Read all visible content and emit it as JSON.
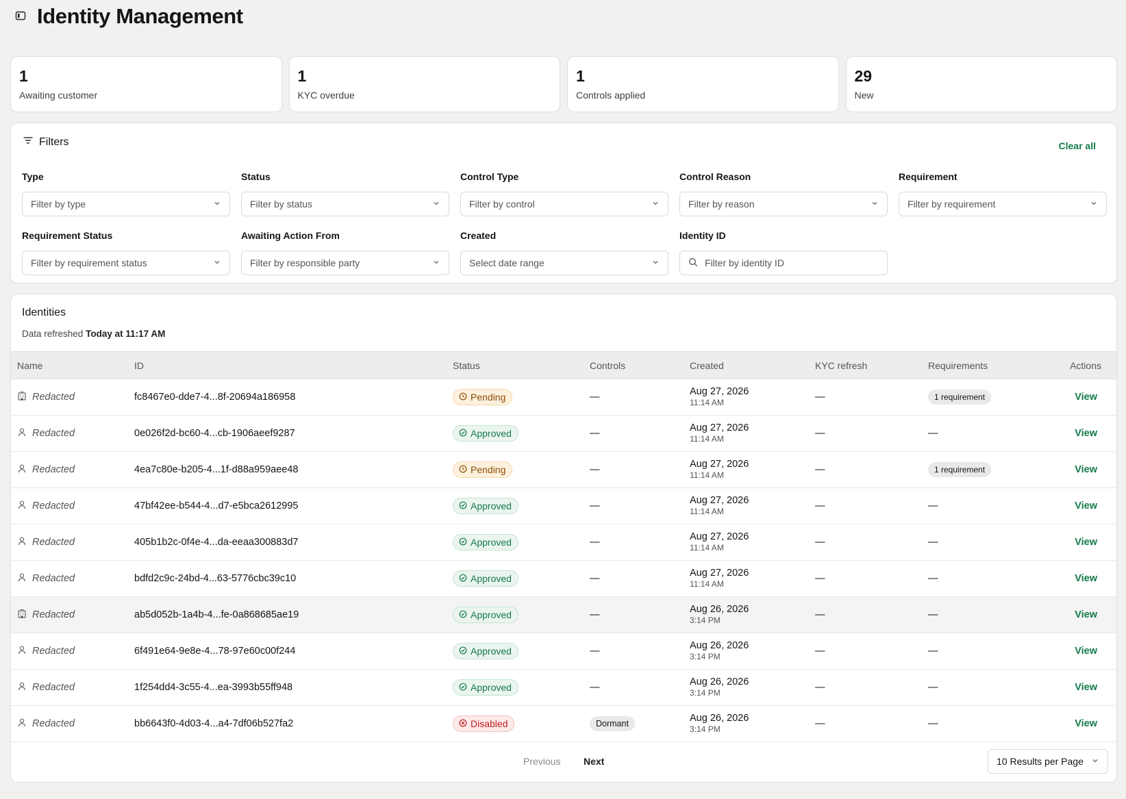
{
  "page": {
    "title": "Identity Management"
  },
  "stats": [
    {
      "value": "1",
      "label": "Awaiting customer"
    },
    {
      "value": "1",
      "label": "KYC overdue"
    },
    {
      "value": "1",
      "label": "Controls applied"
    },
    {
      "value": "29",
      "label": "New"
    }
  ],
  "filters": {
    "title": "Filters",
    "clear_all": "Clear all",
    "row1": [
      {
        "label": "Type",
        "placeholder": "Filter by type"
      },
      {
        "label": "Status",
        "placeholder": "Filter by status"
      },
      {
        "label": "Control Type",
        "placeholder": "Filter by control"
      },
      {
        "label": "Control Reason",
        "placeholder": "Filter by reason"
      },
      {
        "label": "Requirement",
        "placeholder": "Filter by requirement"
      }
    ],
    "row2": [
      {
        "label": "Requirement Status",
        "placeholder": "Filter by requirement status"
      },
      {
        "label": "Awaiting Action From",
        "placeholder": "Filter by responsible party"
      },
      {
        "label": "Created",
        "placeholder": "Select date range"
      },
      {
        "label": "Identity ID",
        "placeholder": "Filter by identity ID"
      }
    ]
  },
  "table": {
    "title": "Identities",
    "refresh_prefix": "Data refreshed",
    "refresh_time": "Today at 11:17 AM",
    "columns": [
      "Name",
      "ID",
      "Status",
      "Controls",
      "Created",
      "KYC refresh",
      "Requirements",
      "Actions"
    ],
    "rows": [
      {
        "type": "business",
        "name": "Redacted",
        "id": "fc8467e0-dde7-4...8f-20694a186958",
        "status": "Pending",
        "controls": "—",
        "date": "Aug 27, 2026",
        "time": "11:14 AM",
        "kyc": "—",
        "requirements": "1 requirement",
        "action": "View"
      },
      {
        "type": "person",
        "name": "Redacted",
        "id": "0e026f2d-bc60-4...cb-1906aeef9287",
        "status": "Approved",
        "controls": "—",
        "date": "Aug 27, 2026",
        "time": "11:14 AM",
        "kyc": "—",
        "requirements": "—",
        "action": "View"
      },
      {
        "type": "person",
        "name": "Redacted",
        "id": "4ea7c80e-b205-4...1f-d88a959aee48",
        "status": "Pending",
        "controls": "—",
        "date": "Aug 27, 2026",
        "time": "11:14 AM",
        "kyc": "—",
        "requirements": "1 requirement",
        "action": "View"
      },
      {
        "type": "person",
        "name": "Redacted",
        "id": "47bf42ee-b544-4...d7-e5bca2612995",
        "status": "Approved",
        "controls": "—",
        "date": "Aug 27, 2026",
        "time": "11:14 AM",
        "kyc": "—",
        "requirements": "—",
        "action": "View"
      },
      {
        "type": "person",
        "name": "Redacted",
        "id": "405b1b2c-0f4e-4...da-eeaa300883d7",
        "status": "Approved",
        "controls": "—",
        "date": "Aug 27, 2026",
        "time": "11:14 AM",
        "kyc": "—",
        "requirements": "—",
        "action": "View"
      },
      {
        "type": "person",
        "name": "Redacted",
        "id": "bdfd2c9c-24bd-4...63-5776cbc39c10",
        "status": "Approved",
        "controls": "—",
        "date": "Aug 27, 2026",
        "time": "11:14 AM",
        "kyc": "—",
        "requirements": "—",
        "action": "View"
      },
      {
        "type": "business",
        "name": "Redacted",
        "id": "ab5d052b-1a4b-4...fe-0a868685ae19",
        "status": "Approved",
        "controls": "—",
        "date": "Aug 26, 2026",
        "time": "3:14 PM",
        "kyc": "—",
        "requirements": "—",
        "action": "View",
        "highlight": true
      },
      {
        "type": "person",
        "name": "Redacted",
        "id": "6f491e64-9e8e-4...78-97e60c00f244",
        "status": "Approved",
        "controls": "—",
        "date": "Aug 26, 2026",
        "time": "3:14 PM",
        "kyc": "—",
        "requirements": "—",
        "action": "View"
      },
      {
        "type": "person",
        "name": "Redacted",
        "id": "1f254dd4-3c55-4...ea-3993b55ff948",
        "status": "Approved",
        "controls": "—",
        "date": "Aug 26, 2026",
        "time": "3:14 PM",
        "kyc": "—",
        "requirements": "—",
        "action": "View"
      },
      {
        "type": "person",
        "name": "Redacted",
        "id": "bb6643f0-4d03-4...a4-7df06b527fa2",
        "status": "Disabled",
        "controls": "Dormant",
        "date": "Aug 26, 2026",
        "time": "3:14 PM",
        "kyc": "—",
        "requirements": "—",
        "action": "View"
      }
    ]
  },
  "pagination": {
    "previous": "Previous",
    "next": "Next",
    "per_page": "10 Results per Page"
  },
  "colors": {
    "accent": "#137a4a",
    "pending": "#8a4d06",
    "approved": "#137a4a",
    "disabled": "#c21d1d"
  }
}
